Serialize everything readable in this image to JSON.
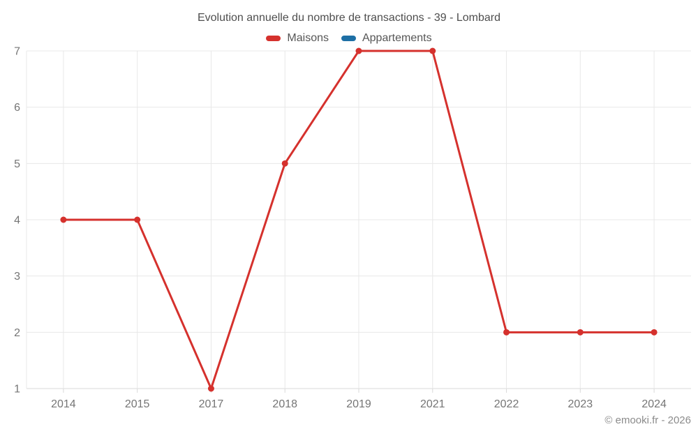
{
  "title": "Evolution annuelle du nombre de transactions - 39 - Lombard",
  "legend": {
    "items": [
      {
        "label": "Maisons",
        "color": "#d5312d"
      },
      {
        "label": "Appartements",
        "color": "#1d6fa5"
      }
    ]
  },
  "footer": "© emooki.fr - 2026",
  "colors": {
    "maisons_red": "#d5312d",
    "appartements_blue": "#1d6fa5",
    "grid": "#e8e8e8",
    "axis": "#d9d9d9",
    "axis_text": "#757575"
  },
  "chart_data": {
    "type": "line",
    "title": "Evolution annuelle du nombre de transactions - 39 - Lombard",
    "categories": [
      "2014",
      "2015",
      "2017",
      "2018",
      "2019",
      "2021",
      "2022",
      "2023",
      "2024"
    ],
    "series": [
      {
        "name": "Maisons",
        "color": "#d5312d",
        "values": [
          4,
          4,
          1,
          5,
          7,
          7,
          2,
          2,
          2
        ]
      },
      {
        "name": "Appartements",
        "color": "#1d6fa5",
        "values": []
      }
    ],
    "xlabel": "",
    "ylabel": "",
    "ylim": [
      1,
      7
    ],
    "yticks": [
      1,
      2,
      3,
      4,
      5,
      6,
      7
    ],
    "grid": true,
    "legend_position": "top",
    "point_radius": 4.5,
    "line_width": 3
  }
}
